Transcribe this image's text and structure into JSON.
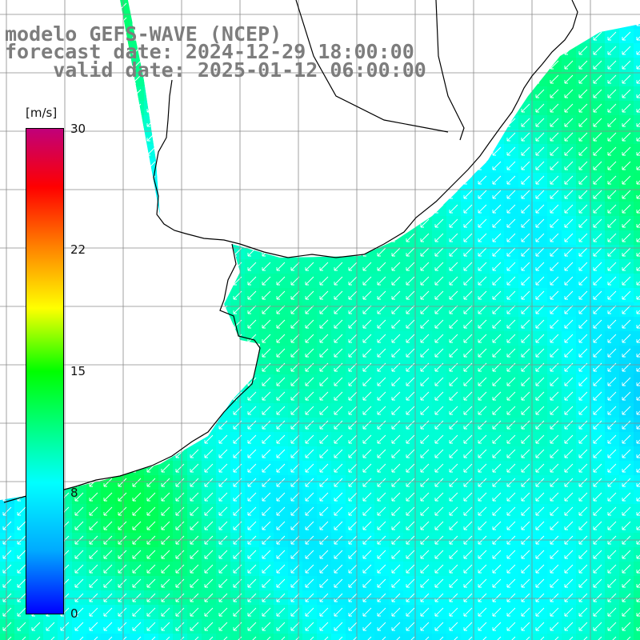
{
  "title": {
    "line1": "modelo GEFS-WAVE (NCEP)",
    "line2": "forecast date: 2024-12-29 18:00:00",
    "line3": "    valid date: 2025-01-12 06:00:00"
  },
  "colorbar": {
    "unit": "[m/s]",
    "min": 0,
    "max": 30,
    "ticks": [
      "30",
      "22",
      "15",
      "8",
      "0"
    ],
    "tick_values": [
      30,
      22,
      15,
      8,
      0
    ],
    "colors": [
      "#0000ff",
      "#00aaff",
      "#00ffff",
      "#00ff00",
      "#ffff00",
      "#ff8800",
      "#ff0000",
      "#c0007a"
    ]
  },
  "map": {
    "field": "wind speed",
    "typical_speed_range_ms": [
      5,
      13
    ],
    "dominant_wind_direction": "from north-east",
    "land_color": "#ffffff",
    "grid_color": "#8a8a8a",
    "coastline_color": "#000000"
  }
}
